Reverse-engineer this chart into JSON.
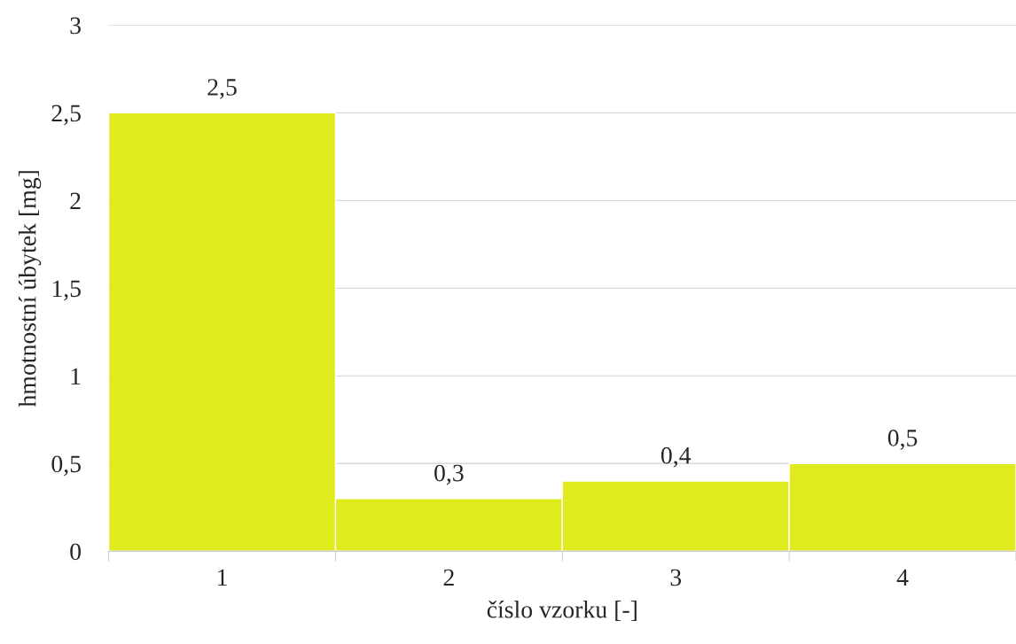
{
  "chart_data": {
    "type": "bar",
    "xlabel": "číslo vzorku [-]",
    "ylabel": "hmotnostní úbytek [mg]",
    "categories": [
      "1",
      "2",
      "3",
      "4"
    ],
    "values": [
      2.5,
      0.3,
      0.4,
      0.5
    ],
    "value_labels": [
      "2,5",
      "0,3",
      "0,4",
      "0,5"
    ],
    "color": "#dfeb1c",
    "ylim": [
      0,
      3
    ],
    "yticks": [
      0,
      {
        "value": 0.5,
        "label": "0,5"
      },
      1,
      {
        "value": 1.5,
        "label": "1,5"
      },
      2,
      {
        "value": 2.5,
        "label": "2,5"
      },
      3
    ],
    "grid": "y"
  }
}
